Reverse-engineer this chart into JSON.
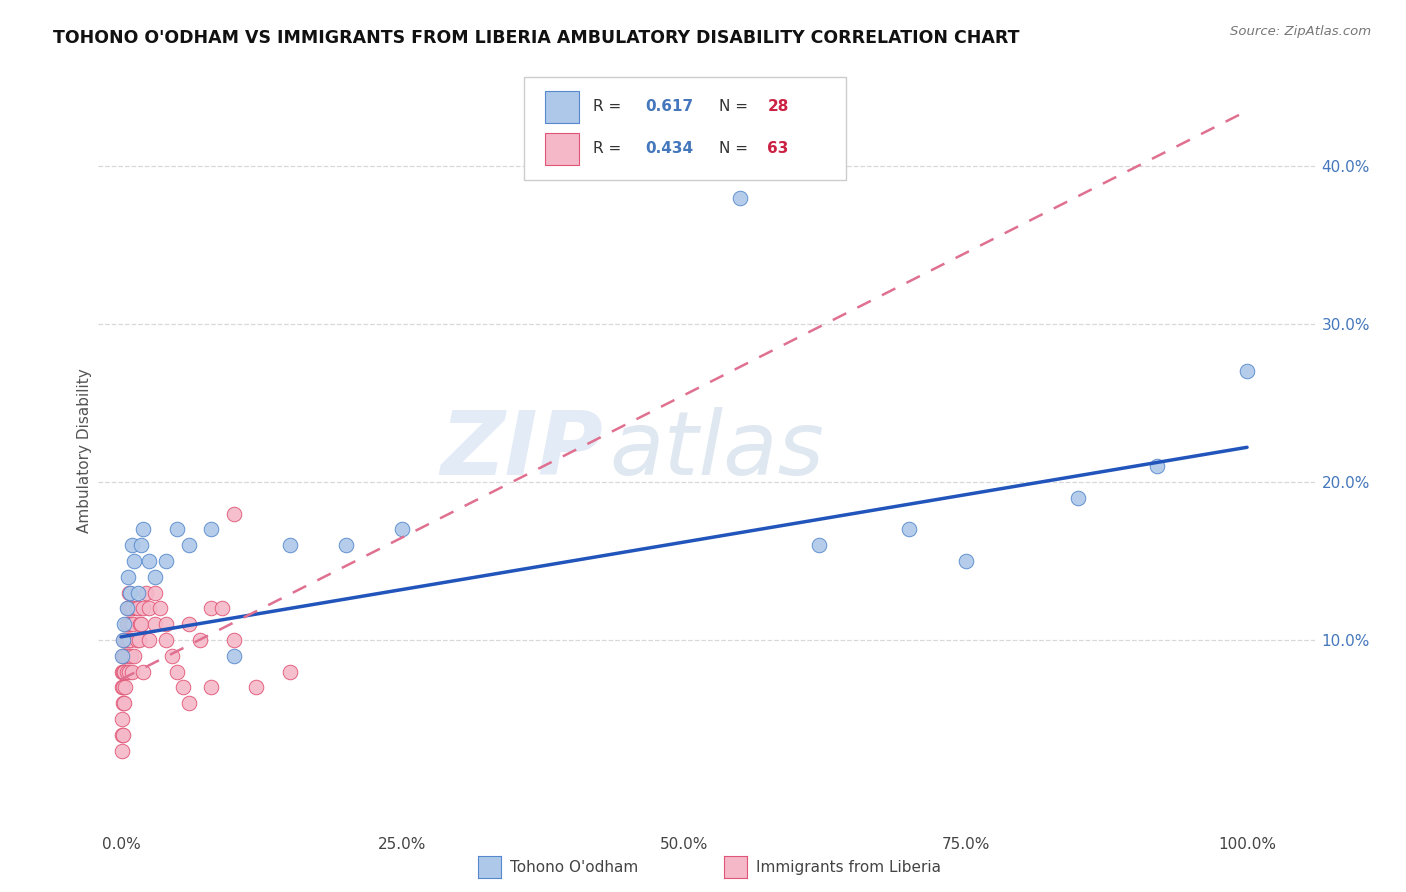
{
  "title": "TOHONO O'ODHAM VS IMMIGRANTS FROM LIBERIA AMBULATORY DISABILITY CORRELATION CHART",
  "source": "Source: ZipAtlas.com",
  "ylabel": "Ambulatory Disability",
  "watermark_zip": "ZIP",
  "watermark_atlas": "atlas",
  "background_color": "#ffffff",
  "plot_bg_color": "#ffffff",
  "grid_color": "#d8d8d8",
  "blue_series": {
    "label": "Tohono O'odham",
    "R": 0.617,
    "N": 28,
    "color": "#adc8e8",
    "border_color": "#5588cc",
    "x": [
      0.001,
      0.002,
      0.003,
      0.005,
      0.006,
      0.008,
      0.01,
      0.012,
      0.015,
      0.018,
      0.02,
      0.025,
      0.03,
      0.04,
      0.05,
      0.06,
      0.08,
      0.1,
      0.15,
      0.2,
      0.25,
      0.55,
      0.62,
      0.7,
      0.75,
      0.85,
      0.92,
      1.0
    ],
    "y": [
      0.09,
      0.1,
      0.11,
      0.12,
      0.14,
      0.13,
      0.16,
      0.15,
      0.13,
      0.16,
      0.17,
      0.15,
      0.14,
      0.15,
      0.17,
      0.16,
      0.17,
      0.09,
      0.16,
      0.16,
      0.17,
      0.38,
      0.16,
      0.17,
      0.15,
      0.19,
      0.21,
      0.27
    ]
  },
  "pink_series": {
    "label": "Immigrants from Liberia",
    "R": 0.434,
    "N": 63,
    "color": "#f5b8c8",
    "border_color": "#e05575",
    "x": [
      0.001,
      0.001,
      0.001,
      0.001,
      0.001,
      0.002,
      0.002,
      0.002,
      0.002,
      0.002,
      0.003,
      0.003,
      0.003,
      0.003,
      0.004,
      0.004,
      0.004,
      0.005,
      0.005,
      0.005,
      0.006,
      0.006,
      0.006,
      0.007,
      0.007,
      0.007,
      0.008,
      0.008,
      0.009,
      0.009,
      0.01,
      0.01,
      0.011,
      0.012,
      0.013,
      0.014,
      0.015,
      0.016,
      0.017,
      0.018,
      0.02,
      0.02,
      0.022,
      0.025,
      0.025,
      0.03,
      0.03,
      0.035,
      0.04,
      0.04,
      0.045,
      0.05,
      0.055,
      0.06,
      0.07,
      0.08,
      0.09,
      0.1,
      0.12,
      0.15,
      0.1,
      0.08,
      0.06
    ],
    "y": [
      0.04,
      0.03,
      0.05,
      0.07,
      0.08,
      0.04,
      0.06,
      0.07,
      0.09,
      0.08,
      0.06,
      0.08,
      0.09,
      0.1,
      0.07,
      0.09,
      0.1,
      0.08,
      0.1,
      0.11,
      0.09,
      0.11,
      0.12,
      0.08,
      0.1,
      0.13,
      0.1,
      0.12,
      0.09,
      0.11,
      0.08,
      0.12,
      0.11,
      0.09,
      0.12,
      0.1,
      0.12,
      0.1,
      0.11,
      0.11,
      0.08,
      0.12,
      0.13,
      0.12,
      0.1,
      0.11,
      0.13,
      0.12,
      0.11,
      0.1,
      0.09,
      0.08,
      0.07,
      0.11,
      0.1,
      0.12,
      0.12,
      0.1,
      0.07,
      0.08,
      0.18,
      0.07,
      0.06
    ]
  },
  "blue_line_x0": 0.0,
  "blue_line_y0": 0.102,
  "blue_line_x1": 1.0,
  "blue_line_y1": 0.222,
  "pink_line_x0": 0.0,
  "pink_line_y0": 0.075,
  "pink_line_x1": 0.25,
  "pink_line_y1": 0.165,
  "xlim": [
    -0.02,
    1.06
  ],
  "ylim": [
    -0.02,
    0.46
  ],
  "xticks": [
    0.0,
    0.25,
    0.5,
    0.75,
    1.0
  ],
  "xtick_labels": [
    "0.0%",
    "25.0%",
    "50.0%",
    "75.0%",
    "100.0%"
  ],
  "yticks": [
    0.0,
    0.1,
    0.2,
    0.3,
    0.4
  ],
  "ytick_labels": [
    "",
    "10.0%",
    "20.0%",
    "30.0%",
    "40.0%"
  ],
  "legend_R_color": "#4477bb",
  "legend_N_color": "#cc2244",
  "legend_label_color": "#333333"
}
